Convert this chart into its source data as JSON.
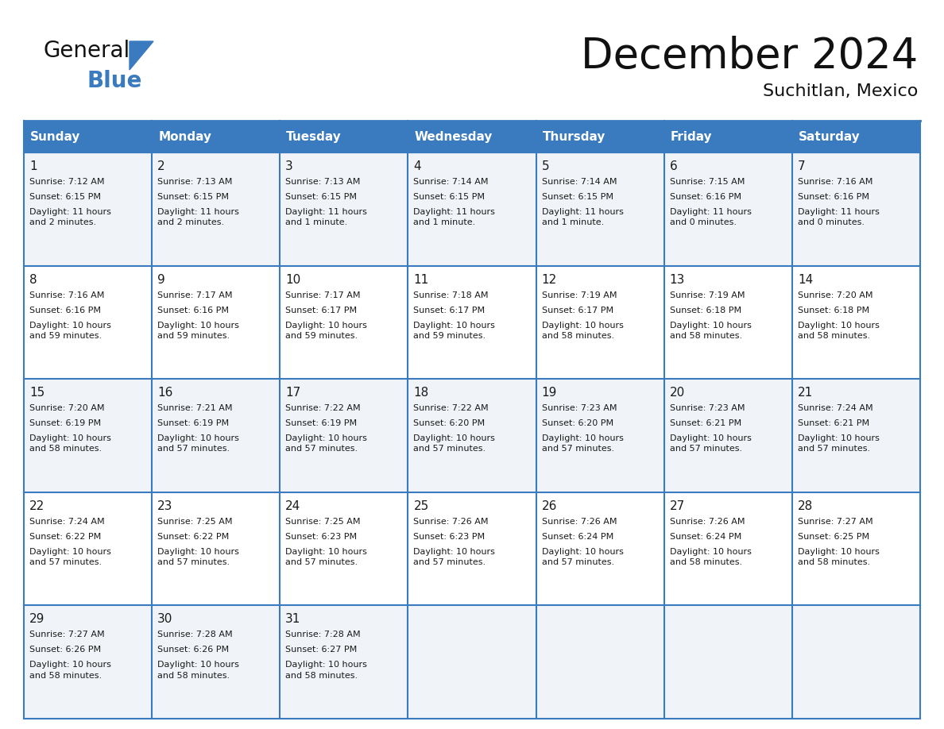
{
  "title": "December 2024",
  "subtitle": "Suchitlan, Mexico",
  "header_color": "#3a7abf",
  "header_text_color": "#ffffff",
  "row_colors": [
    "#f0f4f8",
    "#ffffff"
  ],
  "border_color": "#3a7abf",
  "text_color": "#1a1a1a",
  "day_headers": [
    "Sunday",
    "Monday",
    "Tuesday",
    "Wednesday",
    "Thursday",
    "Friday",
    "Saturday"
  ],
  "weeks": [
    [
      {
        "day": 1,
        "sunrise": "7:12 AM",
        "sunset": "6:15 PM",
        "daylight": "11 hours\nand 2 minutes."
      },
      {
        "day": 2,
        "sunrise": "7:13 AM",
        "sunset": "6:15 PM",
        "daylight": "11 hours\nand 2 minutes."
      },
      {
        "day": 3,
        "sunrise": "7:13 AM",
        "sunset": "6:15 PM",
        "daylight": "11 hours\nand 1 minute."
      },
      {
        "day": 4,
        "sunrise": "7:14 AM",
        "sunset": "6:15 PM",
        "daylight": "11 hours\nand 1 minute."
      },
      {
        "day": 5,
        "sunrise": "7:14 AM",
        "sunset": "6:15 PM",
        "daylight": "11 hours\nand 1 minute."
      },
      {
        "day": 6,
        "sunrise": "7:15 AM",
        "sunset": "6:16 PM",
        "daylight": "11 hours\nand 0 minutes."
      },
      {
        "day": 7,
        "sunrise": "7:16 AM",
        "sunset": "6:16 PM",
        "daylight": "11 hours\nand 0 minutes."
      }
    ],
    [
      {
        "day": 8,
        "sunrise": "7:16 AM",
        "sunset": "6:16 PM",
        "daylight": "10 hours\nand 59 minutes."
      },
      {
        "day": 9,
        "sunrise": "7:17 AM",
        "sunset": "6:16 PM",
        "daylight": "10 hours\nand 59 minutes."
      },
      {
        "day": 10,
        "sunrise": "7:17 AM",
        "sunset": "6:17 PM",
        "daylight": "10 hours\nand 59 minutes."
      },
      {
        "day": 11,
        "sunrise": "7:18 AM",
        "sunset": "6:17 PM",
        "daylight": "10 hours\nand 59 minutes."
      },
      {
        "day": 12,
        "sunrise": "7:19 AM",
        "sunset": "6:17 PM",
        "daylight": "10 hours\nand 58 minutes."
      },
      {
        "day": 13,
        "sunrise": "7:19 AM",
        "sunset": "6:18 PM",
        "daylight": "10 hours\nand 58 minutes."
      },
      {
        "day": 14,
        "sunrise": "7:20 AM",
        "sunset": "6:18 PM",
        "daylight": "10 hours\nand 58 minutes."
      }
    ],
    [
      {
        "day": 15,
        "sunrise": "7:20 AM",
        "sunset": "6:19 PM",
        "daylight": "10 hours\nand 58 minutes."
      },
      {
        "day": 16,
        "sunrise": "7:21 AM",
        "sunset": "6:19 PM",
        "daylight": "10 hours\nand 57 minutes."
      },
      {
        "day": 17,
        "sunrise": "7:22 AM",
        "sunset": "6:19 PM",
        "daylight": "10 hours\nand 57 minutes."
      },
      {
        "day": 18,
        "sunrise": "7:22 AM",
        "sunset": "6:20 PM",
        "daylight": "10 hours\nand 57 minutes."
      },
      {
        "day": 19,
        "sunrise": "7:23 AM",
        "sunset": "6:20 PM",
        "daylight": "10 hours\nand 57 minutes."
      },
      {
        "day": 20,
        "sunrise": "7:23 AM",
        "sunset": "6:21 PM",
        "daylight": "10 hours\nand 57 minutes."
      },
      {
        "day": 21,
        "sunrise": "7:24 AM",
        "sunset": "6:21 PM",
        "daylight": "10 hours\nand 57 minutes."
      }
    ],
    [
      {
        "day": 22,
        "sunrise": "7:24 AM",
        "sunset": "6:22 PM",
        "daylight": "10 hours\nand 57 minutes."
      },
      {
        "day": 23,
        "sunrise": "7:25 AM",
        "sunset": "6:22 PM",
        "daylight": "10 hours\nand 57 minutes."
      },
      {
        "day": 24,
        "sunrise": "7:25 AM",
        "sunset": "6:23 PM",
        "daylight": "10 hours\nand 57 minutes."
      },
      {
        "day": 25,
        "sunrise": "7:26 AM",
        "sunset": "6:23 PM",
        "daylight": "10 hours\nand 57 minutes."
      },
      {
        "day": 26,
        "sunrise": "7:26 AM",
        "sunset": "6:24 PM",
        "daylight": "10 hours\nand 57 minutes."
      },
      {
        "day": 27,
        "sunrise": "7:26 AM",
        "sunset": "6:24 PM",
        "daylight": "10 hours\nand 58 minutes."
      },
      {
        "day": 28,
        "sunrise": "7:27 AM",
        "sunset": "6:25 PM",
        "daylight": "10 hours\nand 58 minutes."
      }
    ],
    [
      {
        "day": 29,
        "sunrise": "7:27 AM",
        "sunset": "6:26 PM",
        "daylight": "10 hours\nand 58 minutes."
      },
      {
        "day": 30,
        "sunrise": "7:28 AM",
        "sunset": "6:26 PM",
        "daylight": "10 hours\nand 58 minutes."
      },
      {
        "day": 31,
        "sunrise": "7:28 AM",
        "sunset": "6:27 PM",
        "daylight": "10 hours\nand 58 minutes."
      },
      null,
      null,
      null,
      null
    ]
  ],
  "logo_text_general": "General",
  "logo_text_blue": "Blue",
  "logo_color_general": "#111111",
  "logo_color_blue": "#3a7abf",
  "logo_triangle_color": "#3a7abf"
}
